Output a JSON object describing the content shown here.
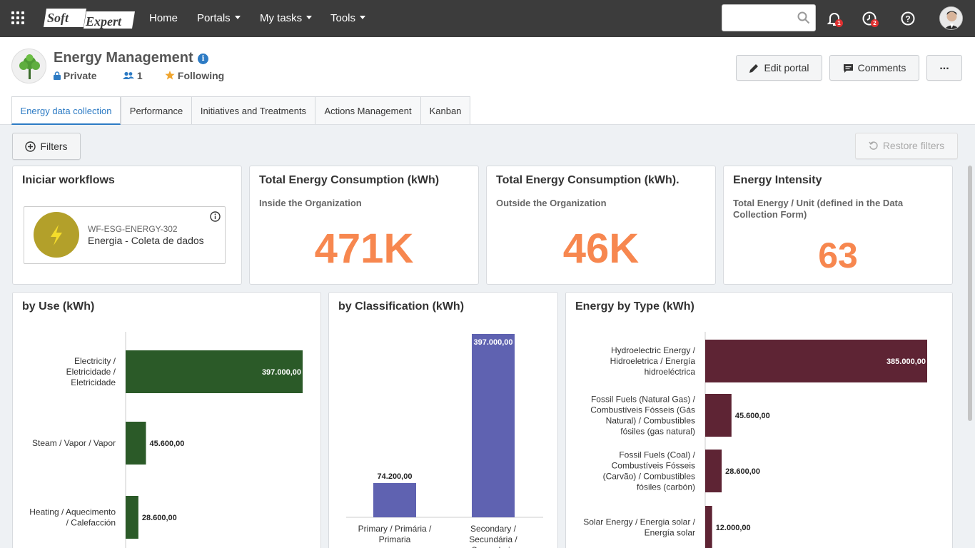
{
  "topbar": {
    "nav": [
      "Home",
      "Portals",
      "My tasks",
      "Tools"
    ],
    "notif_count": "1",
    "task_count": "2"
  },
  "portal": {
    "title": "Energy Management",
    "privacy": "Private",
    "members": "1",
    "following": "Following",
    "edit_label": "Edit portal",
    "comments_label": "Comments",
    "more_label": "..."
  },
  "tabs": [
    "Energy data collection",
    "Performance",
    "Initiatives and Treatments",
    "Actions Management",
    "Kanban"
  ],
  "toolbar": {
    "filters_label": "Filters",
    "restore_label": "Restore filters"
  },
  "workflow_card": {
    "title": "Iniciar workflows",
    "code": "WF-ESG-ENERGY-302",
    "name": "Energia - Coleta de dados"
  },
  "kpis": [
    {
      "title": "Total Energy Consumption (kWh)",
      "subtitle": "Inside the Organization",
      "value": "471K"
    },
    {
      "title": "Total Energy Consumption (kWh).",
      "subtitle": "Outside the Organization",
      "value": "46K"
    },
    {
      "title": "Energy Intensity",
      "subtitle": "Total Energy / Unit (defined in the Data Collection Form)",
      "value": "63"
    }
  ],
  "colors": {
    "kpi": "#f7874f",
    "use": "#2b5a28",
    "classification": "#5f62b1",
    "type": "#5e2434"
  },
  "chart_data": [
    {
      "type": "bar",
      "orientation": "horizontal",
      "title": "by Use (kWh)",
      "categories": [
        [
          "Electricity /",
          "Eletricidade /",
          "Eletricidade"
        ],
        [
          "Steam / Vapor / Vapor"
        ],
        [
          "Heating / Aquecimento",
          "/ Calefacción"
        ]
      ],
      "values": [
        397000,
        45600,
        28600
      ],
      "labels": [
        "397.000,00",
        "45.600,00",
        "28.600,00"
      ]
    },
    {
      "type": "bar",
      "orientation": "vertical",
      "title": "by Classification (kWh)",
      "categories": [
        [
          "Primary / Primária /",
          "Primaria"
        ],
        [
          "Secondary /",
          "Secundária /",
          "Secundaria"
        ]
      ],
      "values": [
        74200,
        397000
      ],
      "labels": [
        "74.200,00",
        "397.000,00"
      ]
    },
    {
      "type": "bar",
      "orientation": "horizontal",
      "title": "Energy by Type (kWh)",
      "categories": [
        [
          "Hydroelectric Energy /",
          "Hidroeletrica / Energía",
          "hidroeléctrica"
        ],
        [
          "Fossil Fuels (Natural Gas) /",
          "Combustíveis Fósseis (Gás",
          "Natural) / Combustibles",
          "fósiles (gas natural)"
        ],
        [
          "Fossil Fuels (Coal) /",
          "Combustíveis Fósseis",
          "(Carvão) / Combustibles",
          "fósiles (carbón)"
        ],
        [
          "Solar Energy / Energia solar /",
          "Energía solar"
        ]
      ],
      "values": [
        385000,
        45600,
        28600,
        12000
      ],
      "labels": [
        "385.000,00",
        "45.600,00",
        "28.600,00",
        "12.000,00"
      ]
    }
  ]
}
